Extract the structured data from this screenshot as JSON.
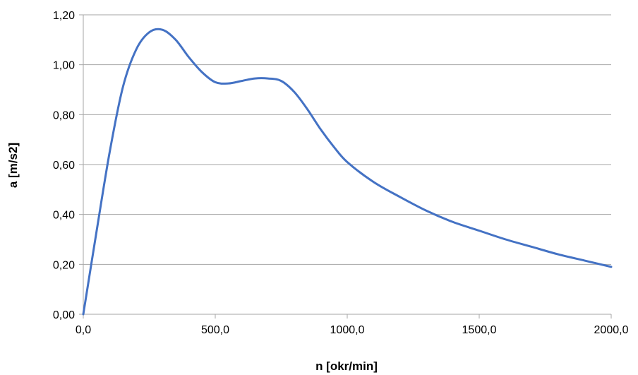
{
  "chart_data": {
    "type": "line",
    "title": "",
    "xlabel": "n [okr/min]",
    "ylabel": "a [m/s2]",
    "xlim": [
      0,
      2000
    ],
    "ylim": [
      0,
      1.2
    ],
    "x_ticks": [
      "0,0",
      "500,0",
      "1000,0",
      "1500,0",
      "2000,0"
    ],
    "y_ticks": [
      "0,00",
      "0,20",
      "0,40",
      "0,60",
      "0,80",
      "1,00",
      "1,20"
    ],
    "grid": true,
    "legend": "none",
    "line_color": "#4472C4",
    "grid_color": "#A6A6A6",
    "series": [
      {
        "x": [
          0,
          50,
          100,
          150,
          200,
          250,
          300,
          350,
          400,
          450,
          500,
          550,
          600,
          650,
          700,
          750,
          800,
          850,
          900,
          950,
          1000,
          1100,
          1200,
          1300,
          1400,
          1500,
          1600,
          1700,
          1800,
          1900,
          2000
        ],
        "y": [
          0,
          0.33,
          0.65,
          0.91,
          1.06,
          1.13,
          1.14,
          1.1,
          1.03,
          0.97,
          0.93,
          0.925,
          0.935,
          0.945,
          0.945,
          0.935,
          0.89,
          0.82,
          0.74,
          0.67,
          0.61,
          0.53,
          0.47,
          0.415,
          0.37,
          0.335,
          0.3,
          0.27,
          0.24,
          0.215,
          0.19
        ]
      }
    ]
  }
}
